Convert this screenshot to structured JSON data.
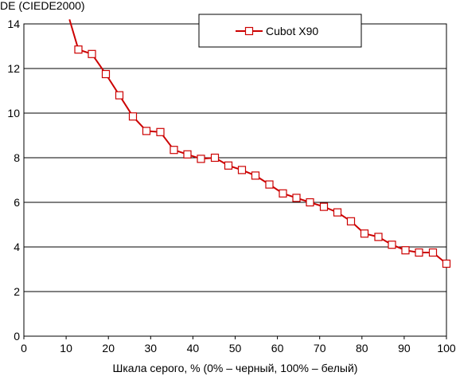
{
  "chart_data": {
    "type": "line",
    "title": "",
    "ylabel": "DE (CIEDE2000)",
    "xlabel": "Шкала серого, % (0% – черный, 100% – белый)",
    "xlim": [
      0,
      100
    ],
    "ylim": [
      0,
      14
    ],
    "xticks": [
      0,
      10,
      20,
      30,
      40,
      50,
      60,
      70,
      80,
      90,
      100
    ],
    "yticks": [
      0,
      2,
      4,
      6,
      8,
      10,
      12,
      14
    ],
    "grid": "horizontal",
    "legend_position": "top-right",
    "series": [
      {
        "name": "Cubot X90",
        "color": "#cc0000",
        "marker": "square",
        "line_start": [
          10.8,
          14.2
        ],
        "x": [
          12.9,
          16.1,
          19.4,
          22.6,
          25.8,
          29.0,
          32.3,
          35.5,
          38.7,
          41.9,
          45.2,
          48.4,
          51.6,
          54.8,
          58.1,
          61.3,
          64.5,
          67.7,
          71.0,
          74.2,
          77.4,
          80.6,
          83.9,
          87.1,
          90.3,
          93.5,
          96.8,
          100
        ],
        "y": [
          12.85,
          12.65,
          11.75,
          10.8,
          9.85,
          9.2,
          9.15,
          8.35,
          8.15,
          7.95,
          8.0,
          7.65,
          7.45,
          7.2,
          6.8,
          6.4,
          6.2,
          6.0,
          5.8,
          5.55,
          5.15,
          4.6,
          4.45,
          4.1,
          3.85,
          3.75,
          3.75,
          3.25
        ]
      }
    ]
  }
}
